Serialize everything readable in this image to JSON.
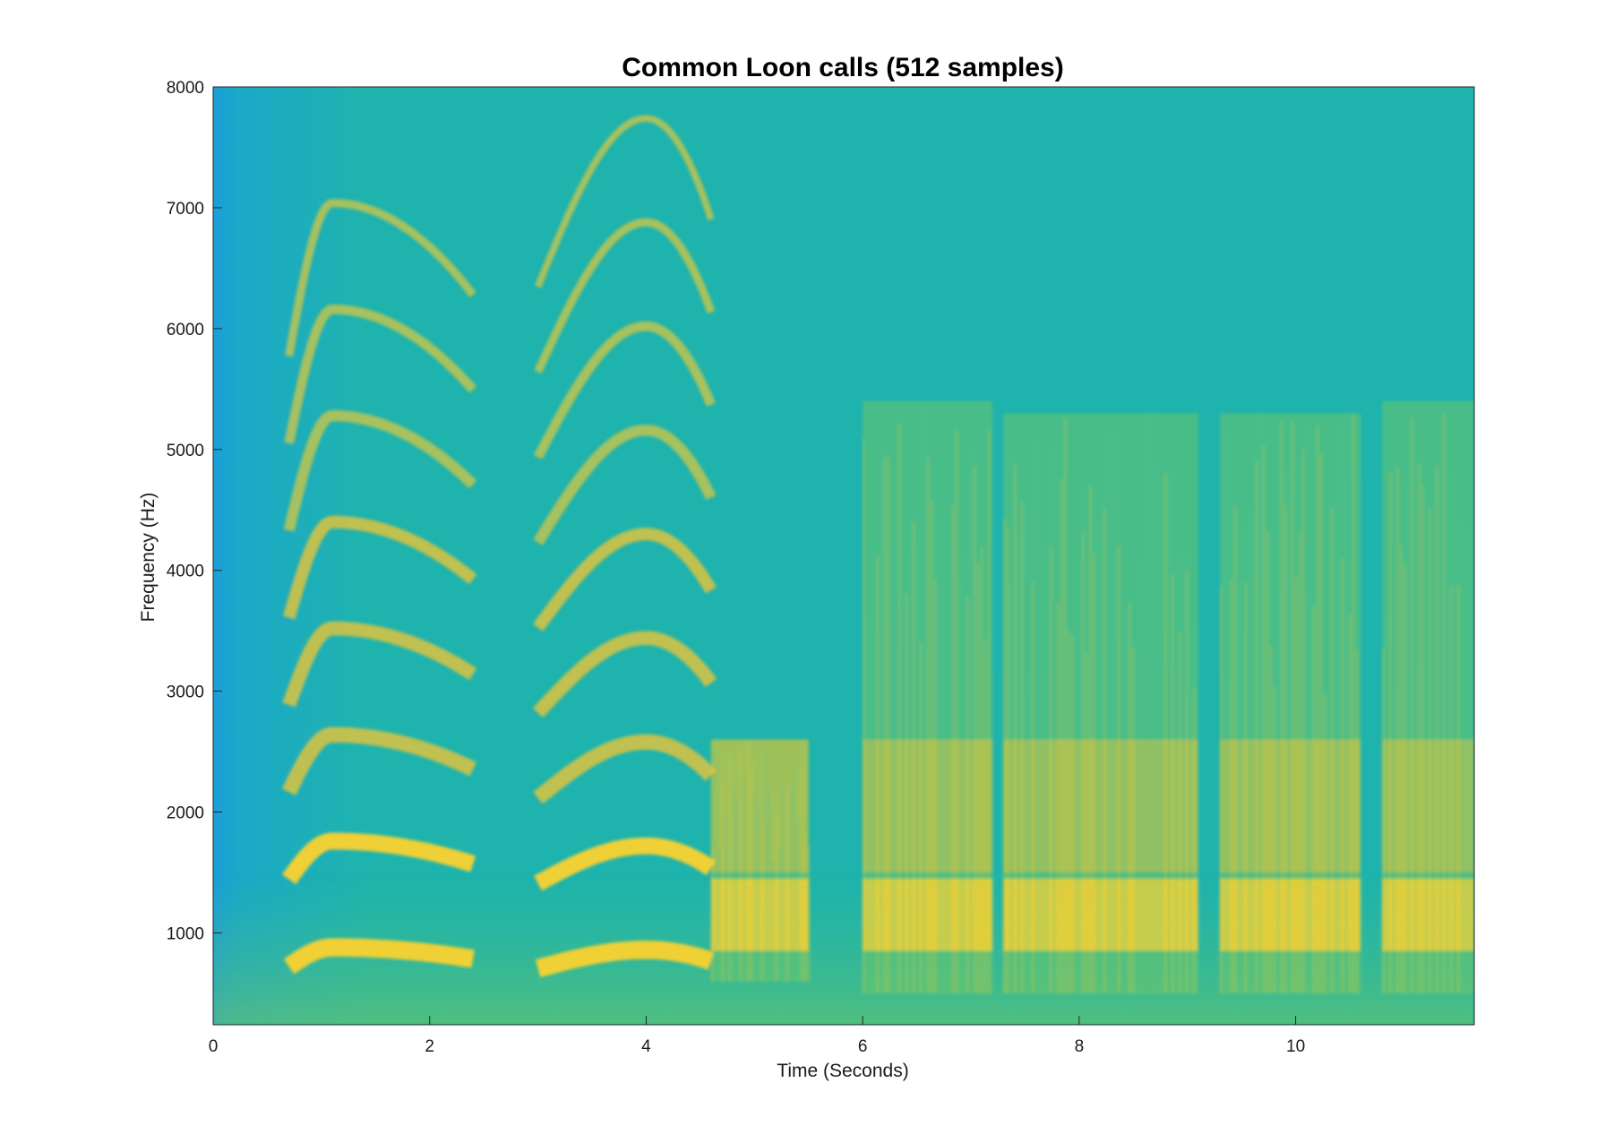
{
  "chart_data": {
    "type": "heatmap",
    "title": "Common Loon calls (512 samples)",
    "xlabel": "Time (Seconds)",
    "ylabel": "Frequency (Hz)",
    "xlim": [
      0,
      11.65
    ],
    "ylim": [
      240,
      8000
    ],
    "x_ticks": [
      0,
      2,
      4,
      6,
      8,
      10
    ],
    "y_ticks": [
      1000,
      2000,
      3000,
      4000,
      5000,
      6000,
      7000,
      8000
    ],
    "x_tick_labels": [
      "0",
      "2",
      "4",
      "6",
      "8",
      "10"
    ],
    "y_tick_labels": [
      "1000",
      "2000",
      "3000",
      "4000",
      "5000",
      "6000",
      "7000",
      "8000"
    ],
    "colormap": "parula",
    "colors": {
      "low": "#1aa0d6",
      "mid": "#1fb5a6",
      "high": "#f2c23a",
      "peak": "#fde72b"
    },
    "harmonic_calls": [
      {
        "t_start": 0.7,
        "t_end": 2.4,
        "peak_time": 1.1,
        "fundamental_hz": 880,
        "harmonics": 8
      },
      {
        "t_start": 3.0,
        "t_end": 4.6,
        "peak_time": 4.0,
        "fundamental_hz": 860,
        "harmonics": 9
      }
    ],
    "broadband_calls": [
      {
        "t_start": 4.6,
        "t_end": 5.5,
        "band_hz": [
          600,
          2600
        ]
      },
      {
        "t_start": 6.0,
        "t_end": 7.2,
        "band_hz": [
          500,
          5400
        ]
      },
      {
        "t_start": 7.3,
        "t_end": 9.1,
        "band_hz": [
          500,
          5300
        ]
      },
      {
        "t_start": 9.3,
        "t_end": 10.6,
        "band_hz": [
          500,
          5300
        ]
      },
      {
        "t_start": 10.8,
        "t_end": 11.65,
        "band_hz": [
          500,
          5400
        ]
      }
    ]
  }
}
